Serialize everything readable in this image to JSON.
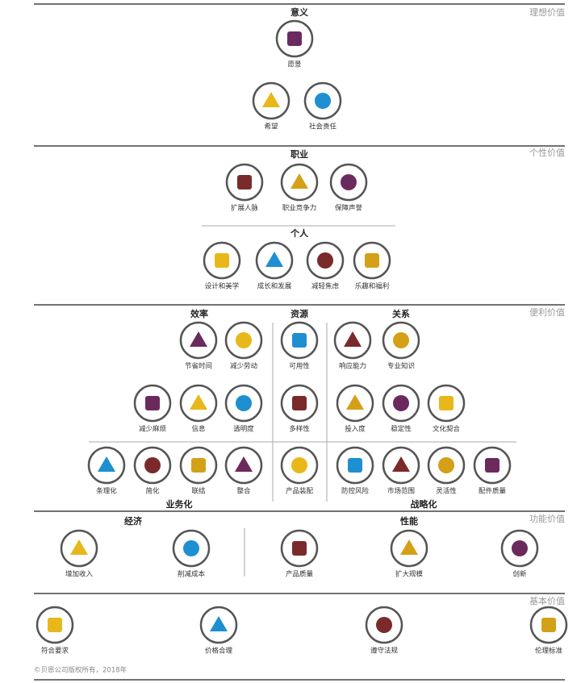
{
  "sections": [
    {
      "label": "理想价值",
      "headings": [
        "意义"
      ],
      "items": [
        "愿景",
        "希望",
        "社会责任"
      ]
    },
    {
      "label": "个性价值",
      "headings": [
        "职业",
        "个人"
      ],
      "items": [
        "扩展人脉",
        "职业竞争力",
        "保障声誉",
        "设计和美学",
        "成长和发展",
        "减轻焦虑",
        "乐趣和福利"
      ]
    },
    {
      "label": "便利价值",
      "headings": [
        "效率",
        "资源",
        "关系",
        "业务化",
        "战略化"
      ],
      "items": [
        "节省时间",
        "减少劳动",
        "可用性",
        "响应能力",
        "专业知识",
        "减少麻烦",
        "信息",
        "透明度",
        "多样性",
        "投入度",
        "稳定性",
        "文化契合",
        "条理化",
        "简化",
        "联结",
        "整合",
        "产品装配",
        "防控风险",
        "市场范围",
        "灵活性",
        "配件质量"
      ]
    },
    {
      "label": "功能价值",
      "headings": [
        "经济",
        "性能"
      ],
      "items": [
        "增加收入",
        "削减成本",
        "产品质量",
        "扩大规模",
        "创新"
      ]
    },
    {
      "label": "基本价值",
      "headings": [],
      "items": [
        "符合要求",
        "价格合理",
        "遵守法规",
        "伦理标准"
      ]
    }
  ],
  "footer": "©贝恩公司版权所有，2018年"
}
